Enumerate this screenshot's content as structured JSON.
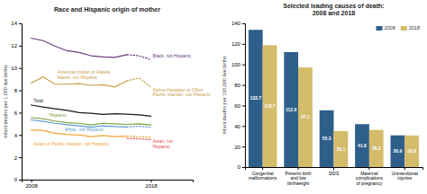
{
  "chart_data": [
    {
      "type": "line",
      "title": "Race and Hispanic origin of mother",
      "ylabel": "Infant deaths per 1,000 live births",
      "xlim": [
        2007.2,
        2021.5
      ],
      "xticks": [
        2008,
        2018
      ],
      "ylim": [
        0,
        14
      ],
      "yticks": [
        0,
        2,
        4,
        6,
        8,
        10,
        12,
        14
      ],
      "grid": false,
      "series": [
        {
          "color": "#6b3d7d",
          "line_style": "solid",
          "x": [
            2008,
            2009,
            2010,
            2011,
            2012,
            2013,
            2014,
            2015,
            2016
          ],
          "values": [
            12.67,
            12.45,
            11.95,
            11.55,
            11.4,
            11.1,
            11.0,
            10.95,
            11.2
          ]
        },
        {
          "color": "#6b3d7d",
          "line_style": "dotted",
          "x": [
            2016,
            2017,
            2018
          ],
          "values": [
            11.2,
            11.1,
            10.75
          ]
        },
        {
          "color": "#c8a04a",
          "line_style": "solid",
          "x": [
            2008,
            2009,
            2010,
            2011,
            2012,
            2013,
            2014,
            2015,
            2016
          ],
          "values": [
            8.65,
            9.2,
            8.55,
            8.55,
            8.6,
            8.45,
            8.5,
            8.3,
            8.85
          ]
        },
        {
          "color": "#c8a04a",
          "line_style": "dotted",
          "x": [
            2016,
            2017,
            2018
          ],
          "values": [
            8.85,
            9.1,
            8.3
          ]
        },
        {
          "color": "#1a1a1a",
          "line_style": "solid",
          "x": [
            2008,
            2009,
            2010,
            2011,
            2012,
            2013,
            2014,
            2015,
            2016,
            2017,
            2018
          ],
          "values": [
            6.68,
            6.5,
            6.35,
            6.2,
            6.0,
            5.95,
            5.85,
            5.9,
            5.87,
            5.8,
            5.68
          ]
        },
        {
          "color": "#7a9e3b",
          "line_style": "solid",
          "x": [
            2008,
            2009,
            2010,
            2011,
            2012,
            2013,
            2014,
            2015,
            2016,
            2017,
            2018
          ],
          "values": [
            5.55,
            5.45,
            5.25,
            5.1,
            5.05,
            4.9,
            5.05,
            5.0,
            4.95,
            5.0,
            4.9
          ]
        },
        {
          "color": "#5b9bd5",
          "line_style": "solid",
          "x": [
            2008,
            2009,
            2010,
            2011,
            2012,
            2013,
            2014,
            2015,
            2016
          ],
          "values": [
            5.35,
            5.22,
            5.05,
            4.92,
            4.82,
            4.7,
            4.82,
            4.75,
            4.72
          ]
        },
        {
          "color": "#5b9bd5",
          "line_style": "dotted",
          "x": [
            2016,
            2017,
            2018
          ],
          "values": [
            4.72,
            4.78,
            4.68
          ]
        },
        {
          "color": "#f4a336",
          "line_style": "solid",
          "x": [
            2008,
            2009,
            2010,
            2011,
            2012,
            2013,
            2014,
            2015,
            2016
          ],
          "values": [
            4.45,
            4.4,
            4.15,
            4.05,
            4.0,
            3.85,
            3.95,
            3.85,
            3.9
          ]
        },
        {
          "color": "#f4a336",
          "line_style": "dotted",
          "x": [
            2016,
            2017,
            2018
          ],
          "values": [
            3.9,
            3.85,
            3.8
          ]
        },
        {
          "color": "#e05050",
          "line_style": "dotted",
          "x": [
            2016,
            2017,
            2018
          ],
          "values": [
            3.7,
            3.65,
            3.6
          ]
        }
      ],
      "annotations": [
        {
          "text": "Total",
          "x": 2008.2,
          "y": 7.05,
          "color": "#1a1a1a"
        },
        {
          "text": "Hispanic",
          "x": 2009.5,
          "y": 5.78,
          "color": "#7a9e3b"
        },
        {
          "text": "White, not Hispanic",
          "x": 2010.8,
          "y": 4.52,
          "color": "#5b9bd5"
        },
        {
          "text": "Asian or Pacific Islander, not Hispanic",
          "x": 2008.2,
          "y": 3.2,
          "color": "#f4a336"
        },
        {
          "text": "American Indian or Alaska\nNative, not Hispanic",
          "x": 2010.2,
          "y": 9.65,
          "color": "#c8a04a"
        },
        {
          "text": "Black, not Hispanic",
          "x": 2018.15,
          "y": 11.05,
          "color": "#6b3d7d"
        },
        {
          "text": "Native Hawaiian or Other\nPacific Islander, not Hispanic",
          "x": 2018.15,
          "y": 8.05,
          "color": "#c8a04a"
        },
        {
          "text": "Asian, not\nHispanic",
          "x": 2018.15,
          "y": 3.45,
          "color": "#e05050"
        }
      ]
    },
    {
      "type": "bar",
      "title": "Selected leading causes of death:\n2008 and 2018",
      "ylabel": "Infant deaths per 100,000 live births",
      "categories": [
        "Congenital\nmalformations",
        "Preterm birth\nand low\nbirthweight",
        "SIDS",
        "Maternal\ncomplications\nof pregnancy",
        "Unintentional\ninjuries"
      ],
      "series": [
        {
          "name": "2008",
          "color": "#2e5f8a",
          "values": [
            133.7,
            112.0,
            55.3,
            41.8,
            30.9
          ],
          "value_labels": [
            "133.7",
            "112.0",
            "55.3",
            "41.8",
            "30.9"
          ]
        },
        {
          "name": "2018",
          "color": "#d4bc6a",
          "values": [
            118.7,
            97.1,
            35.1,
            36.2,
            30.8
          ],
          "value_labels": [
            "118.7",
            "97.1",
            "35.1",
            "36.2",
            "30.8"
          ]
        }
      ],
      "ylim": [
        0,
        140
      ],
      "yticks": [
        0,
        20,
        40,
        60,
        80,
        100,
        120,
        140
      ],
      "legend": "upper right",
      "data_labels": true,
      "grid": false
    }
  ]
}
